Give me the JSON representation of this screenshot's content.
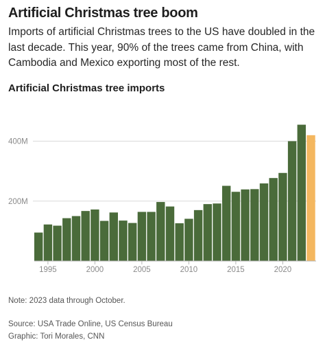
{
  "header": {
    "title": "Artificial Christmas tree boom",
    "subtitle": "Imports of artificial Christmas trees to the US have doubled in the last decade. This year, 90% of the trees came from China, with Cambodia and Mexico exporting most of the rest."
  },
  "footer": {
    "note": "Note: 2023 data through October.",
    "source": "Source: USA Trade Online, US Census Bureau",
    "credit": "Graphic: Tori Morales, CNN"
  },
  "chart_data": {
    "type": "bar",
    "title": "Artificial Christmas tree imports",
    "xlabel": "",
    "ylabel": "",
    "categories": [
      1994,
      1995,
      1996,
      1997,
      1998,
      1999,
      2000,
      2001,
      2002,
      2003,
      2004,
      2005,
      2006,
      2007,
      2008,
      2009,
      2010,
      2011,
      2012,
      2013,
      2014,
      2015,
      2016,
      2017,
      2018,
      2019,
      2020,
      2021,
      2022,
      2023
    ],
    "values": [
      95,
      122,
      118,
      143,
      150,
      167,
      172,
      134,
      162,
      135,
      127,
      164,
      164,
      197,
      182,
      126,
      141,
      170,
      190,
      192,
      251,
      231,
      239,
      240,
      259,
      277,
      294,
      400,
      455,
      420
    ],
    "ylim": [
      0,
      470
    ],
    "yticks": [
      200,
      400
    ],
    "ytick_labels": [
      "200M",
      "400M"
    ],
    "xticks": [
      1995,
      2000,
      2005,
      2010,
      2015,
      2020
    ],
    "xtick_labels": [
      "1995",
      "2000",
      "2005",
      "2010",
      "2015",
      "2020"
    ],
    "grid": true,
    "colors": {
      "bar": "#4a6b3a",
      "highlight": "#f4b75f",
      "grid": "#d9d9d9",
      "tick_text": "#8a8a8a"
    },
    "highlight_category": 2023
  }
}
